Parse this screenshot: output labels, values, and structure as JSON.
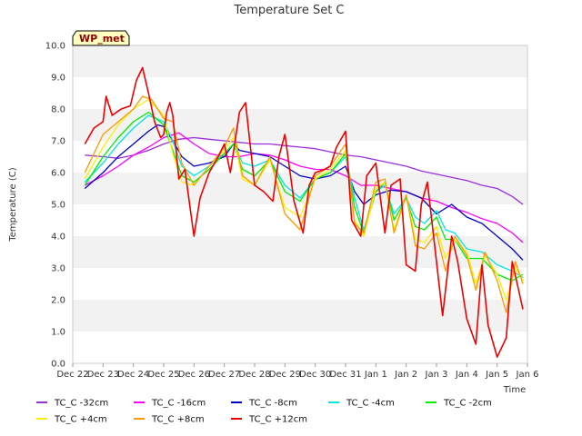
{
  "chart_data": {
    "type": "line",
    "title": "Temperature Set C",
    "xlabel": "Time",
    "ylabel": "Temperature (C)",
    "badge": "WP_met",
    "ylim": [
      0,
      10
    ],
    "xlim": [
      0,
      15
    ],
    "yticks": [
      "0.0",
      "1.0",
      "2.0",
      "3.0",
      "4.0",
      "5.0",
      "6.0",
      "7.0",
      "8.0",
      "9.0",
      "10.0"
    ],
    "xticks": [
      "Dec 22",
      "Dec 23",
      "Dec 24",
      "Dec 25",
      "Dec 26",
      "Dec 27",
      "Dec 28",
      "Dec 29",
      "Dec 30",
      "Dec 31",
      "Jan 1",
      "Jan 2",
      "Jan 3",
      "Jan 4",
      "Jan 5",
      "Jan 6"
    ],
    "x_unit": "days since Dec 22",
    "grid": "horizontal bands",
    "legend_position": "bottom",
    "series": [
      {
        "name": "TC_C -32cm",
        "color": "#9b30d9",
        "x": [
          0.4,
          1,
          1.5,
          2,
          2.5,
          3,
          3.5,
          4,
          4.5,
          5,
          5.5,
          6,
          6.5,
          7,
          7.5,
          8,
          8.5,
          9,
          9.5,
          10,
          10.5,
          11,
          11.5,
          12,
          12.5,
          13,
          13.5,
          14,
          14.5,
          14.85
        ],
        "y": [
          6.55,
          6.5,
          6.45,
          6.55,
          6.7,
          6.9,
          7.05,
          7.1,
          7.05,
          7.0,
          6.95,
          6.9,
          6.9,
          6.85,
          6.8,
          6.75,
          6.65,
          6.55,
          6.5,
          6.4,
          6.3,
          6.2,
          6.05,
          5.95,
          5.85,
          5.75,
          5.6,
          5.5,
          5.25,
          5.0
        ]
      },
      {
        "name": "TC_C -16cm",
        "color": "#ff00ff",
        "x": [
          0.4,
          1,
          1.5,
          2,
          2.5,
          3,
          3.5,
          4,
          4.5,
          5,
          5.5,
          6,
          6.5,
          7,
          7.5,
          8,
          8.5,
          9,
          9.5,
          10,
          10.5,
          11,
          11.5,
          12,
          12.5,
          13,
          13.5,
          14,
          14.5,
          14.85
        ],
        "y": [
          5.6,
          5.9,
          6.2,
          6.55,
          6.8,
          7.1,
          7.25,
          6.9,
          6.6,
          6.5,
          6.5,
          6.6,
          6.55,
          6.4,
          6.2,
          6.1,
          6.1,
          5.9,
          5.6,
          5.6,
          5.5,
          5.4,
          5.2,
          5.1,
          4.9,
          4.75,
          4.55,
          4.4,
          4.1,
          3.8
        ]
      },
      {
        "name": "TC_C -8cm",
        "color": "#0000cc",
        "x": [
          0.4,
          1,
          1.5,
          2,
          2.5,
          2.8,
          3,
          3.3,
          3.6,
          4,
          4.5,
          5,
          5.3,
          5.5,
          6,
          6.5,
          7,
          7.5,
          8,
          8.5,
          9,
          9.3,
          9.6,
          10,
          10.5,
          11,
          11.5,
          12,
          12.5,
          13,
          13.5,
          14,
          14.5,
          14.85
        ],
        "y": [
          5.5,
          6.0,
          6.5,
          6.9,
          7.3,
          7.5,
          7.45,
          7.0,
          6.5,
          6.2,
          6.3,
          6.5,
          6.9,
          6.7,
          6.6,
          6.5,
          6.2,
          5.9,
          5.8,
          5.9,
          6.2,
          5.4,
          5.0,
          5.3,
          5.45,
          5.4,
          5.2,
          4.7,
          5.0,
          4.6,
          4.4,
          4.0,
          3.6,
          3.25
        ]
      },
      {
        "name": "TC_C -4cm",
        "color": "#00e5e5",
        "x": [
          0.4,
          1,
          1.5,
          2,
          2.5,
          3,
          3.3,
          3.6,
          4,
          4.5,
          5,
          5.3,
          5.6,
          6,
          6.5,
          7,
          7.5,
          8,
          8.5,
          9,
          9.3,
          9.6,
          10,
          10.3,
          10.6,
          11,
          11.3,
          11.6,
          12,
          12.3,
          12.6,
          13,
          13.5,
          14,
          14.5,
          14.85
        ],
        "y": [
          5.7,
          6.3,
          6.9,
          7.4,
          7.8,
          7.6,
          7.0,
          6.2,
          5.9,
          6.2,
          6.6,
          6.9,
          6.3,
          6.2,
          6.4,
          5.6,
          5.2,
          5.8,
          6.0,
          6.5,
          5.2,
          4.2,
          5.4,
          5.6,
          4.7,
          5.2,
          4.6,
          4.4,
          4.8,
          4.2,
          4.1,
          3.6,
          3.5,
          3.1,
          2.9,
          2.7
        ]
      },
      {
        "name": "TC_C -2cm",
        "color": "#00ee00",
        "x": [
          0.4,
          1,
          1.5,
          2,
          2.5,
          3,
          3.3,
          3.6,
          4,
          4.5,
          5,
          5.3,
          5.6,
          6,
          6.5,
          7,
          7.5,
          8,
          8.5,
          9,
          9.3,
          9.6,
          10,
          10.3,
          10.6,
          11,
          11.3,
          11.6,
          12,
          12.3,
          12.6,
          13,
          13.5,
          14,
          14.5,
          14.85
        ],
        "y": [
          5.6,
          6.5,
          7.1,
          7.6,
          7.9,
          7.5,
          6.7,
          5.9,
          5.7,
          6.1,
          6.6,
          6.9,
          6.1,
          5.9,
          6.4,
          5.4,
          5.1,
          5.8,
          6.0,
          6.6,
          4.9,
          4.1,
          5.4,
          5.7,
          4.5,
          5.2,
          4.3,
          4.2,
          4.6,
          3.9,
          3.9,
          3.3,
          3.3,
          2.8,
          2.6,
          2.8
        ]
      },
      {
        "name": "TC_C +4cm",
        "color": "#ffee00",
        "x": [
          0.4,
          1,
          1.5,
          2,
          2.5,
          3,
          3.3,
          3.6,
          4,
          4.5,
          5,
          5.3,
          5.6,
          6,
          6.5,
          7,
          7.5,
          8,
          8.5,
          9,
          9.3,
          9.6,
          10,
          10.3,
          10.6,
          11,
          11.3,
          11.6,
          12,
          12.3,
          12.6,
          13,
          13.3,
          13.6,
          14,
          14.3,
          14.6,
          14.85
        ],
        "y": [
          5.8,
          6.8,
          7.5,
          8.0,
          8.3,
          7.8,
          6.6,
          5.7,
          5.6,
          6.2,
          6.7,
          7.1,
          5.8,
          5.6,
          6.4,
          4.9,
          4.6,
          5.8,
          6.1,
          6.7,
          4.5,
          4.0,
          5.5,
          5.7,
          4.2,
          5.3,
          3.9,
          3.8,
          4.3,
          3.3,
          3.9,
          3.5,
          2.5,
          3.4,
          2.8,
          2.0,
          3.0,
          2.6
        ]
      },
      {
        "name": "TC_C +8cm",
        "color": "#ff9900",
        "x": [
          0.4,
          1,
          1.5,
          2,
          2.3,
          2.6,
          3,
          3.3,
          3.6,
          4,
          4.5,
          5,
          5.3,
          5.6,
          6,
          6.5,
          7,
          7.5,
          8,
          8.5,
          9,
          9.3,
          9.6,
          10,
          10.3,
          10.6,
          11,
          11.3,
          11.6,
          12,
          12.3,
          12.6,
          13,
          13.3,
          13.6,
          14,
          14.3,
          14.6,
          14.85
        ],
        "y": [
          6.0,
          7.2,
          7.6,
          8.0,
          8.4,
          8.3,
          7.7,
          7.6,
          6.3,
          5.6,
          6.2,
          6.8,
          7.4,
          5.9,
          5.6,
          6.5,
          4.7,
          4.2,
          5.9,
          6.2,
          6.9,
          4.4,
          4.1,
          5.7,
          5.8,
          4.1,
          5.3,
          3.7,
          3.6,
          4.1,
          2.9,
          4.0,
          3.4,
          2.3,
          3.5,
          2.6,
          1.6,
          3.2,
          2.5
        ]
      },
      {
        "name": "TC_C +12cm",
        "color": "#ee0000",
        "x": [
          0.4,
          0.7,
          1,
          1.1,
          1.3,
          1.6,
          1.9,
          2.1,
          2.3,
          2.5,
          2.7,
          2.9,
          3.0,
          3.1,
          3.2,
          3.3,
          3.5,
          3.7,
          4.0,
          4.2,
          4.5,
          4.8,
          5.0,
          5.2,
          5.5,
          5.7,
          6.0,
          6.3,
          6.6,
          6.8,
          7.0,
          7.3,
          7.6,
          7.8,
          8.0,
          8.3,
          8.5,
          8.7,
          9.0,
          9.2,
          9.5,
          9.7,
          10.0,
          10.3,
          10.5,
          10.8,
          11.0,
          11.3,
          11.5,
          11.7,
          12.0,
          12.2,
          12.5,
          12.7,
          13.0,
          13.3,
          13.5,
          13.7,
          14.0,
          14.3,
          14.5,
          14.85
        ],
        "y": [
          6.9,
          7.4,
          7.6,
          8.4,
          7.8,
          8.0,
          8.1,
          8.9,
          9.3,
          8.5,
          7.6,
          7.1,
          7.2,
          7.9,
          8.2,
          7.8,
          5.8,
          6.1,
          4.0,
          5.2,
          6.0,
          6.5,
          6.9,
          6.0,
          7.9,
          8.2,
          5.6,
          5.4,
          5.1,
          6.5,
          7.2,
          5.1,
          4.1,
          5.6,
          6.0,
          6.1,
          6.2,
          6.8,
          7.3,
          4.5,
          4.0,
          5.9,
          6.3,
          4.1,
          5.6,
          5.8,
          3.1,
          2.9,
          5.0,
          5.7,
          3.2,
          1.5,
          4.0,
          3.2,
          1.4,
          0.6,
          3.1,
          1.2,
          0.2,
          0.8,
          3.2,
          1.7
        ]
      }
    ]
  }
}
